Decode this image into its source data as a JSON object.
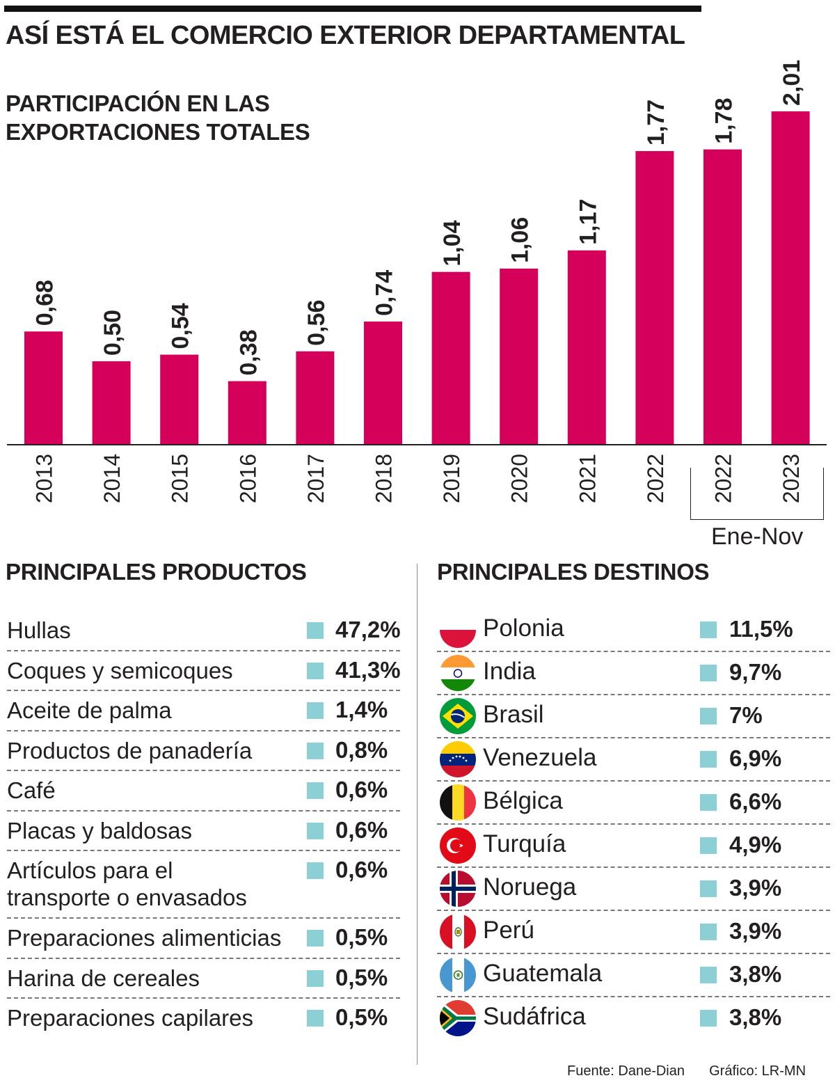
{
  "header": {
    "title": "ASÍ ESTÁ EL COMERCIO EXTERIOR DEPARTAMENTAL",
    "subtitle_line1": "PARTICIPACIÓN EN LAS",
    "subtitle_line2": "EXPORTACIONES TOTALES"
  },
  "colors": {
    "bar": "#d4005a",
    "square": "#8ccfd4",
    "text": "#231f20"
  },
  "chart_data": {
    "type": "bar",
    "title": "PARTICIPACIÓN EN LAS EXPORTACIONES TOTALES",
    "categories": [
      "2013",
      "2014",
      "2015",
      "2016",
      "2017",
      "2018",
      "2019",
      "2020",
      "2021",
      "2022",
      "2022",
      "2023"
    ],
    "values": [
      0.68,
      0.5,
      0.54,
      0.38,
      0.56,
      0.74,
      1.04,
      1.06,
      1.17,
      1.77,
      1.78,
      2.01
    ],
    "labels": [
      "0,68",
      "0,50",
      "0,54",
      "0,38",
      "0,56",
      "0,74",
      "1,04",
      "1,06",
      "1,17",
      "1,77",
      "1,78",
      "2,01"
    ],
    "ylim": [
      0,
      2.01
    ],
    "bracket_label": "Ene-Nov",
    "bracket_categories": [
      "2022",
      "2023"
    ]
  },
  "products": {
    "heading": "PRINCIPALES PRODUCTOS",
    "items": [
      {
        "name": "Hullas",
        "value": "47,2%"
      },
      {
        "name": "Coques y semicoques",
        "value": "41,3%"
      },
      {
        "name": "Aceite de palma",
        "value": "1,4%"
      },
      {
        "name": "Productos de panadería",
        "value": "0,8%"
      },
      {
        "name": "Café",
        "value": "0,6%"
      },
      {
        "name": "Placas y baldosas",
        "value": "0,6%"
      },
      {
        "name": "Artículos para el transporte o envasados",
        "line1": "Artículos para el",
        "line2": "transporte o envasados",
        "value": "0,6%"
      },
      {
        "name": "Preparaciones alimenticias",
        "value": "0,5%"
      },
      {
        "name": "Harina de cereales",
        "value": "0,5%"
      },
      {
        "name": "Preparaciones capilares",
        "value": "0,5%"
      }
    ]
  },
  "destinations": {
    "heading": "PRINCIPALES DESTINOS",
    "items": [
      {
        "name": "Polonia",
        "value": "11,5%",
        "flag_icon": "poland-flag-icon"
      },
      {
        "name": "India",
        "value": "9,7%",
        "flag_icon": "india-flag-icon"
      },
      {
        "name": "Brasil",
        "value": "7%",
        "flag_icon": "brazil-flag-icon"
      },
      {
        "name": "Venezuela",
        "value": "6,9%",
        "flag_icon": "venezuela-flag-icon"
      },
      {
        "name": "Bélgica",
        "value": "6,6%",
        "flag_icon": "belgium-flag-icon"
      },
      {
        "name": "Turquía",
        "value": "4,9%",
        "flag_icon": "turkey-flag-icon"
      },
      {
        "name": "Noruega",
        "value": "3,9%",
        "flag_icon": "norway-flag-icon"
      },
      {
        "name": "Perú",
        "value": "3,9%",
        "flag_icon": "peru-flag-icon"
      },
      {
        "name": "Guatemala",
        "value": "3,8%",
        "flag_icon": "guatemala-flag-icon"
      },
      {
        "name": "Sudáfrica",
        "value": "3,8%",
        "flag_icon": "south-africa-flag-icon"
      }
    ]
  },
  "footer": {
    "source": "Fuente: Dane-Dian",
    "credit": "Gráfico: LR-MN"
  }
}
